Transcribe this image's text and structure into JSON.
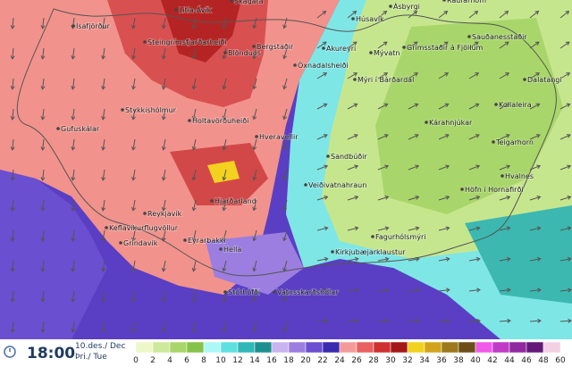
{
  "time": "18:00",
  "date": "10.des./ Dec",
  "day": "Þri./ Tue",
  "legend": {
    "labels": [
      "0",
      "2",
      "4",
      "6",
      "8",
      "10",
      "12",
      "14",
      "16",
      "18",
      "20",
      "22",
      "24",
      "26",
      "28",
      "30",
      "32",
      "34",
      "36",
      "38",
      "40",
      "42",
      "44",
      "46",
      "48",
      "60"
    ],
    "colors": [
      "#eef7c8",
      "#cde99a",
      "#a9d66a",
      "#86c24a",
      "#aef7f7",
      "#5fe0e0",
      "#2fb8b8",
      "#1e8f8f",
      "#c9b3f0",
      "#9c7ee0",
      "#6a4fd0",
      "#3a2ab0",
      "#f59a9a",
      "#e86060",
      "#cf3030",
      "#a51818",
      "#f2d21e",
      "#d2a41c",
      "#9c7a1c",
      "#6e4e16",
      "#f05ae8",
      "#c03ac8",
      "#9028a0",
      "#641878",
      "#f4d0e4"
    ]
  },
  "places": [
    "Litla-Ávík",
    "Skagatá",
    "Húsavík",
    "Ásbyrgi",
    "Raufarhöfn",
    "Steingrímsfjarðarheiði",
    "Bergstaðir",
    "Blönduós",
    "Akureyri",
    "Öxnadalsheiði",
    "Mývatn",
    "Grímsstaðir á Fjöllum",
    "Sauðanesstaðir",
    "Dalatangi",
    "Kollaleira",
    "Kárahnjúkar",
    "Mýri í Bárðardal",
    "Holtavörðuheiði",
    "Stykkishólmur",
    "Gufuskálar",
    "Hveravellir",
    "Sandbúðir",
    "Teigarhorn",
    "Hvalnes",
    "Höfn í Hornafirði",
    "Veiðivatnahraun",
    "Hjarðarland",
    "Reykjavík",
    "Keflavíkurflugvöllur",
    "Grindavík",
    "Eyrarbakki",
    "Hella",
    "Stórhöfði",
    "Vatnsskarðshólar",
    "Kirkjubæjarklaustur",
    "Fagurhólsmýri",
    "Ísafjörður"
  ]
}
